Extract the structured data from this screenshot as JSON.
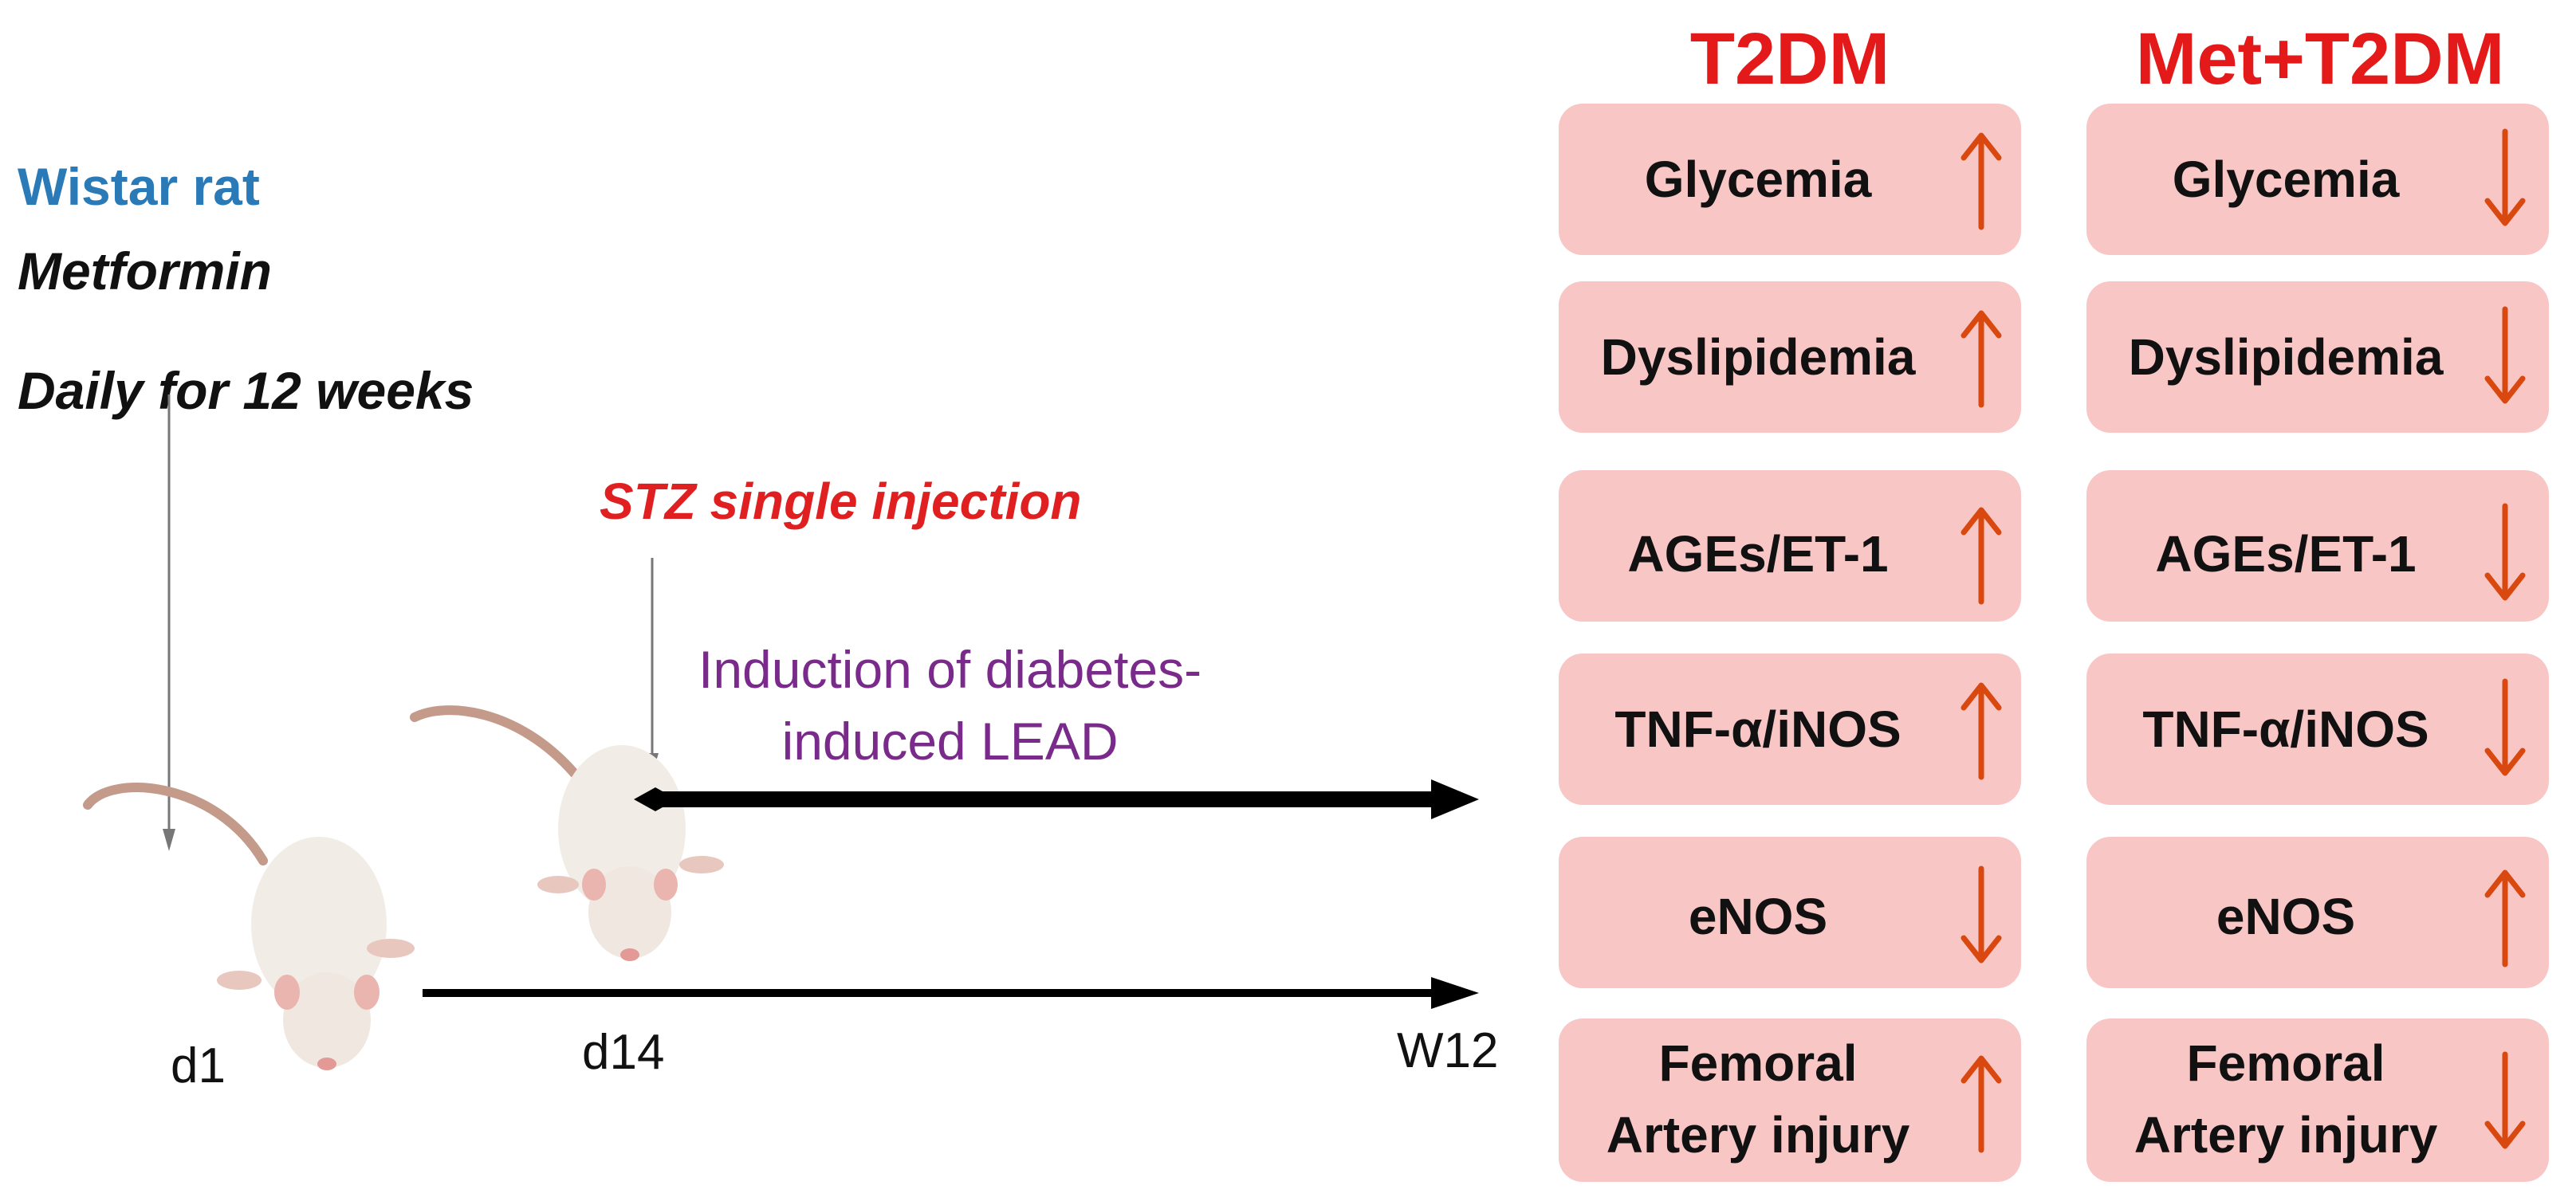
{
  "labels": {
    "wistar": "Wistar rat",
    "metformin": "Metformin",
    "daily": "Daily  for 12 weeks",
    "stz": "STZ  single injection",
    "induction_line1": "Induction  of diabetes-",
    "induction_line2": "induced  LEAD",
    "d1": "d1",
    "d14": "d14",
    "w12": "W12"
  },
  "groups": [
    {
      "title": "T2DM",
      "rows": [
        {
          "marker": "Glycemia",
          "direction": "up"
        },
        {
          "marker": "Dyslipidemia",
          "direction": "up"
        },
        {
          "marker": "AGEs/ET-1",
          "direction": "up"
        },
        {
          "marker": "TNF-α/iNOS",
          "direction": "up"
        },
        {
          "marker": "eNOS",
          "direction": "down"
        },
        {
          "marker_line1": "Femoral",
          "marker_line2": "Artery injury",
          "direction": "up"
        }
      ]
    },
    {
      "title": "Met+T2DM",
      "rows": [
        {
          "marker": "Glycemia",
          "direction": "down"
        },
        {
          "marker": "Dyslipidemia",
          "direction": "down"
        },
        {
          "marker": "AGEs/ET-1",
          "direction": "down"
        },
        {
          "marker": "TNF-α/iNOS",
          "direction": "down"
        },
        {
          "marker": "eNOS",
          "direction": "up"
        },
        {
          "marker_line1": "Femoral",
          "marker_line2": "Artery injury",
          "direction": "down"
        }
      ]
    }
  ],
  "colors": {
    "card": "#f9c6c6",
    "arrow": "#d9480f",
    "heading": "#e41a1a"
  }
}
